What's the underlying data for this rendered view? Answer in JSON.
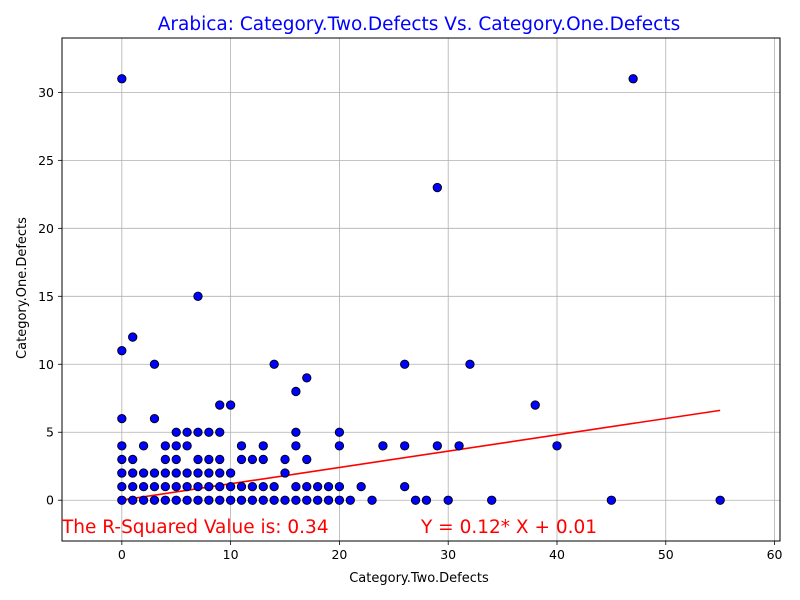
{
  "chart_data": {
    "type": "scatter",
    "title": "Arabica: Category.Two.Defects Vs. Category.One.Defects",
    "xlabel": "Category.Two.Defects",
    "ylabel": "Category.One.Defects",
    "xlim": [
      -5.5,
      60.5
    ],
    "ylim": [
      -3,
      34
    ],
    "xticks": [
      0,
      10,
      20,
      30,
      40,
      50,
      60
    ],
    "yticks": [
      0,
      5,
      10,
      15,
      20,
      25,
      30
    ],
    "grid": true,
    "colors": {
      "title": "#0000ff",
      "point_fill": "#0000ff",
      "point_edge": "#000000",
      "line": "#ff0000",
      "annotation": "#ff0000",
      "grid": "#b0b0b0"
    },
    "points": [
      [
        0,
        31
      ],
      [
        47,
        31
      ],
      [
        29,
        23
      ],
      [
        7,
        15
      ],
      [
        1,
        12
      ],
      [
        0,
        11
      ],
      [
        3,
        10
      ],
      [
        14,
        10
      ],
      [
        26,
        10
      ],
      [
        32,
        10
      ],
      [
        17,
        9
      ],
      [
        16,
        8
      ],
      [
        9,
        7
      ],
      [
        10,
        7
      ],
      [
        38,
        7
      ],
      [
        0,
        6
      ],
      [
        3,
        6
      ],
      [
        5,
        5
      ],
      [
        6,
        5
      ],
      [
        7,
        5
      ],
      [
        8,
        5
      ],
      [
        9,
        5
      ],
      [
        16,
        5
      ],
      [
        20,
        5
      ],
      [
        0,
        4
      ],
      [
        2,
        4
      ],
      [
        4,
        4
      ],
      [
        5,
        4
      ],
      [
        6,
        4
      ],
      [
        11,
        4
      ],
      [
        13,
        4
      ],
      [
        16,
        4
      ],
      [
        20,
        4
      ],
      [
        24,
        4
      ],
      [
        26,
        4
      ],
      [
        29,
        4
      ],
      [
        31,
        4
      ],
      [
        40,
        4
      ],
      [
        0,
        3
      ],
      [
        1,
        3
      ],
      [
        4,
        3
      ],
      [
        5,
        3
      ],
      [
        7,
        3
      ],
      [
        8,
        3
      ],
      [
        9,
        3
      ],
      [
        11,
        3
      ],
      [
        12,
        3
      ],
      [
        13,
        3
      ],
      [
        15,
        3
      ],
      [
        17,
        3
      ],
      [
        0,
        2
      ],
      [
        1,
        2
      ],
      [
        2,
        2
      ],
      [
        3,
        2
      ],
      [
        4,
        2
      ],
      [
        5,
        2
      ],
      [
        6,
        2
      ],
      [
        7,
        2
      ],
      [
        8,
        2
      ],
      [
        9,
        2
      ],
      [
        10,
        2
      ],
      [
        15,
        2
      ],
      [
        0,
        1
      ],
      [
        1,
        1
      ],
      [
        2,
        1
      ],
      [
        3,
        1
      ],
      [
        4,
        1
      ],
      [
        5,
        1
      ],
      [
        6,
        1
      ],
      [
        7,
        1
      ],
      [
        8,
        1
      ],
      [
        9,
        1
      ],
      [
        10,
        1
      ],
      [
        11,
        1
      ],
      [
        12,
        1
      ],
      [
        13,
        1
      ],
      [
        14,
        1
      ],
      [
        16,
        1
      ],
      [
        17,
        1
      ],
      [
        18,
        1
      ],
      [
        19,
        1
      ],
      [
        20,
        1
      ],
      [
        22,
        1
      ],
      [
        26,
        1
      ],
      [
        0,
        0
      ],
      [
        1,
        0
      ],
      [
        2,
        0
      ],
      [
        3,
        0
      ],
      [
        4,
        0
      ],
      [
        5,
        0
      ],
      [
        6,
        0
      ],
      [
        7,
        0
      ],
      [
        8,
        0
      ],
      [
        9,
        0
      ],
      [
        10,
        0
      ],
      [
        11,
        0
      ],
      [
        12,
        0
      ],
      [
        13,
        0
      ],
      [
        14,
        0
      ],
      [
        15,
        0
      ],
      [
        16,
        0
      ],
      [
        17,
        0
      ],
      [
        18,
        0
      ],
      [
        19,
        0
      ],
      [
        20,
        0
      ],
      [
        21,
        0
      ],
      [
        23,
        0
      ],
      [
        27,
        0
      ],
      [
        28,
        0
      ],
      [
        30,
        0
      ],
      [
        34,
        0
      ],
      [
        45,
        0
      ],
      [
        55,
        0
      ]
    ],
    "regression": {
      "slope": 0.12,
      "intercept": 0.01,
      "x_range": [
        0,
        55
      ]
    },
    "annotations": {
      "r_squared_text": "The R-Squared Value is: 0.34",
      "equation_text": "Y = 0.12* X + 0.01"
    }
  }
}
